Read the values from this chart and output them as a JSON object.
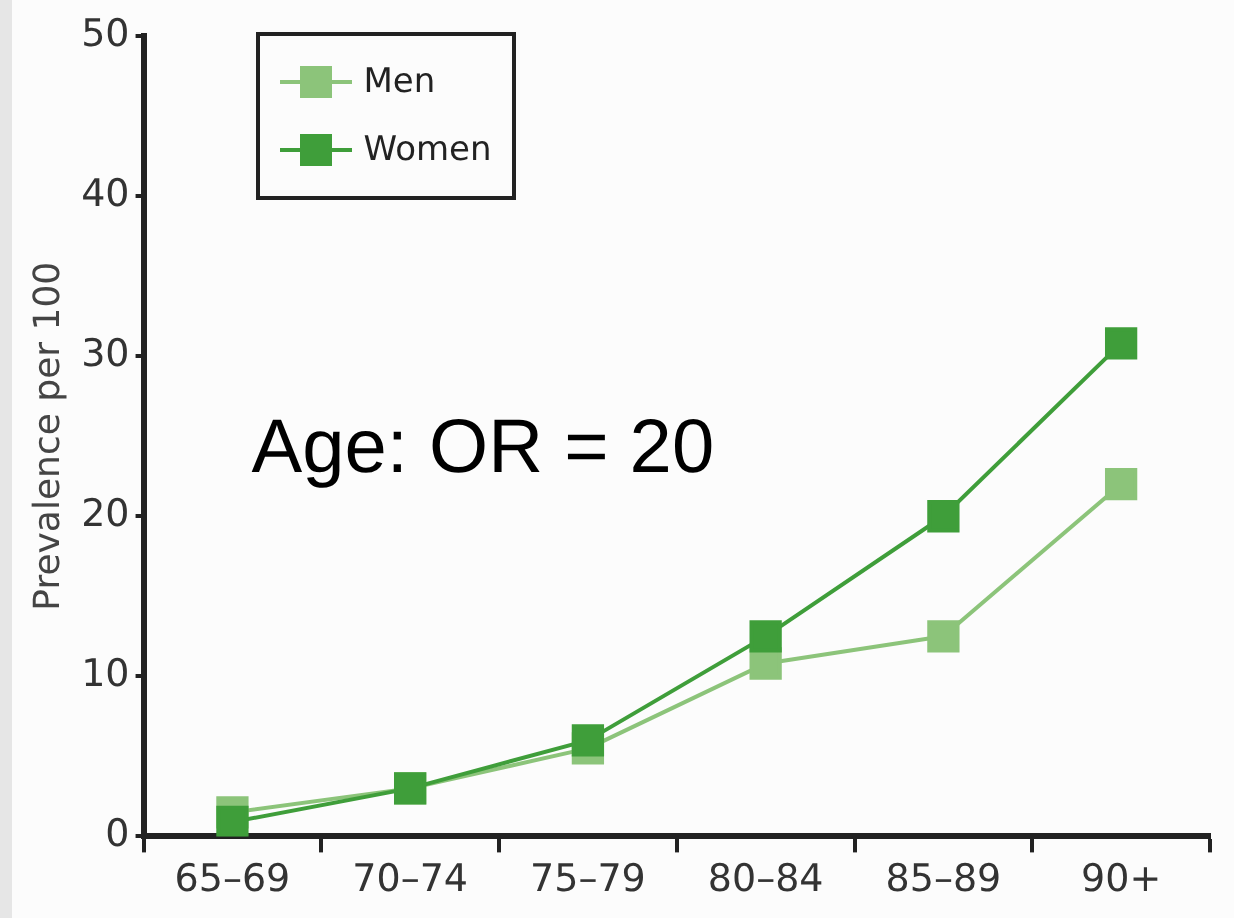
{
  "chart_data": {
    "type": "line",
    "ylabel": "Prevalence per 100",
    "categories": [
      "65–69",
      "70–74",
      "75–79",
      "80–84",
      "85–89",
      "90+"
    ],
    "series": [
      {
        "name": "Men",
        "color": "#8cc47a",
        "values": [
          1.5,
          3,
          5.5,
          10.8,
          12.5,
          22
        ]
      },
      {
        "name": "Women",
        "color": "#3f9e3a",
        "values": [
          0.9,
          3,
          6,
          12.5,
          20,
          30.8
        ]
      }
    ],
    "ylim": [
      0,
      50
    ],
    "yticks": [
      0,
      10,
      20,
      30,
      40,
      50
    ],
    "grid": false,
    "legend": "top left",
    "marker": "square",
    "line_style": "solid",
    "annotations": [
      "Age: OR = 20"
    ]
  }
}
